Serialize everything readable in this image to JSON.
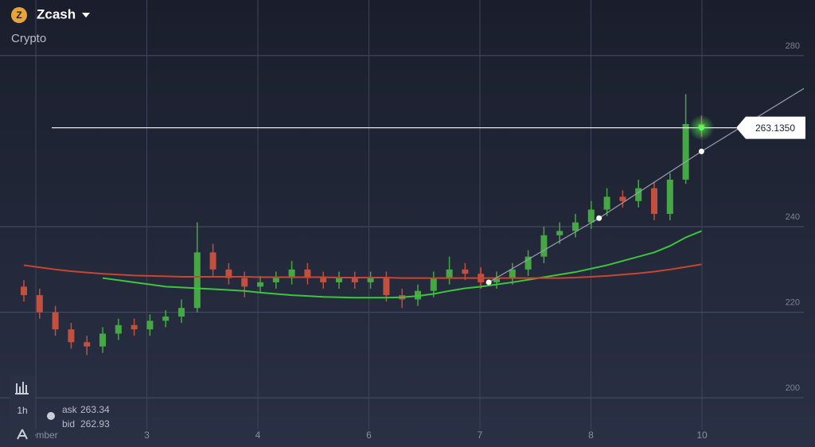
{
  "header": {
    "asset": "Zcash",
    "category": "Crypto"
  },
  "toolbar": {
    "timeframe": "1h"
  },
  "quotes": {
    "ask_label": "ask",
    "ask": 263.34,
    "bid_label": "bid",
    "bid": 262.93
  },
  "chart_data": {
    "type": "candlestick",
    "x_labels": [
      "November",
      "3",
      "4",
      "6",
      "7",
      "8",
      "10"
    ],
    "ylim": [
      188.5,
      293
    ],
    "yticks": [
      200,
      220,
      240,
      280
    ],
    "grid": true,
    "up_color": "#45a845",
    "down_color": "#c2503e",
    "candles": [
      [
        226,
        227.5,
        222.5,
        224
      ],
      [
        224,
        225.5,
        218.5,
        220
      ],
      [
        220,
        221.5,
        214.5,
        216
      ],
      [
        216,
        217.5,
        211.5,
        213
      ],
      [
        213,
        214.5,
        210,
        212
      ],
      [
        212,
        216.5,
        210.5,
        215
      ],
      [
        215,
        218.5,
        213.5,
        217
      ],
      [
        217,
        218.5,
        214.5,
        216
      ],
      [
        216,
        219.5,
        214.5,
        218
      ],
      [
        218,
        220.5,
        216.5,
        219
      ],
      [
        219,
        223,
        217.5,
        221
      ],
      [
        221,
        241,
        220,
        234
      ],
      [
        234,
        236,
        228.5,
        230
      ],
      [
        230,
        231.5,
        226.5,
        228
      ],
      [
        228,
        229.5,
        223.5,
        226
      ],
      [
        226,
        228.5,
        224.5,
        227
      ],
      [
        227,
        229.5,
        225.5,
        228
      ],
      [
        228,
        232,
        226.5,
        230
      ],
      [
        230,
        231.5,
        226.5,
        228
      ],
      [
        228,
        229.5,
        225.5,
        227
      ],
      [
        227,
        229.5,
        225.5,
        228
      ],
      [
        228,
        229.5,
        225.5,
        227
      ],
      [
        227,
        229.5,
        225.5,
        228
      ],
      [
        228,
        229.5,
        222.5,
        224
      ],
      [
        224,
        225.5,
        221,
        223
      ],
      [
        223,
        226.5,
        221.5,
        225
      ],
      [
        225,
        229.5,
        223.5,
        228
      ],
      [
        228,
        233,
        226.5,
        230
      ],
      [
        230,
        231.5,
        227.5,
        229
      ],
      [
        229,
        230.5,
        225.5,
        227
      ],
      [
        227,
        229.5,
        225.5,
        228
      ],
      [
        228,
        231.5,
        226.5,
        230
      ],
      [
        230,
        234.5,
        228.5,
        233
      ],
      [
        233,
        240,
        231.5,
        238
      ],
      [
        238,
        241,
        236,
        239
      ],
      [
        239,
        243,
        237.5,
        241
      ],
      [
        241,
        246,
        239.5,
        244
      ],
      [
        244,
        249,
        242.5,
        247
      ],
      [
        247,
        248.5,
        244.5,
        246
      ],
      [
        246,
        251,
        244.5,
        249
      ],
      [
        249,
        250.5,
        241.5,
        243
      ],
      [
        243,
        252.5,
        241.5,
        251
      ],
      [
        251,
        271,
        250,
        264
      ],
      [
        264,
        266,
        261,
        263
      ]
    ],
    "series": [
      {
        "color": "#3cc63c",
        "values": [
          null,
          null,
          null,
          null,
          null,
          228,
          227.5,
          227,
          226.5,
          226,
          225.8,
          225.6,
          225.4,
          225.2,
          225,
          224.6,
          224.3,
          224,
          223.8,
          223.6,
          223.5,
          223.4,
          223.4,
          223.4,
          223.5,
          223.8,
          224.3,
          225,
          225.6,
          226,
          226.5,
          227,
          227.6,
          228.2,
          228.8,
          229.4,
          230.2,
          231,
          232,
          233,
          234,
          235.5,
          237.5,
          239
        ]
      },
      {
        "color": "#c8452f",
        "values": [
          231,
          230.5,
          230,
          229.6,
          229.3,
          229,
          228.8,
          228.6,
          228.5,
          228.4,
          228.3,
          228.3,
          228.3,
          228.3,
          228.3,
          228.2,
          228.2,
          228.2,
          228.2,
          228.2,
          228.1,
          228.1,
          228.1,
          228.1,
          228,
          228,
          228,
          228,
          228,
          228,
          228,
          228,
          228,
          228,
          228,
          228.1,
          228.3,
          228.5,
          228.8,
          229.1,
          229.5,
          230,
          230.6,
          231.2
        ]
      }
    ],
    "trendline": {
      "x": [
        29.5,
        36.5,
        43
      ],
      "y": [
        227,
        242,
        257.6
      ]
    },
    "current_price": {
      "value": 263.135,
      "label": "263.1350"
    }
  }
}
